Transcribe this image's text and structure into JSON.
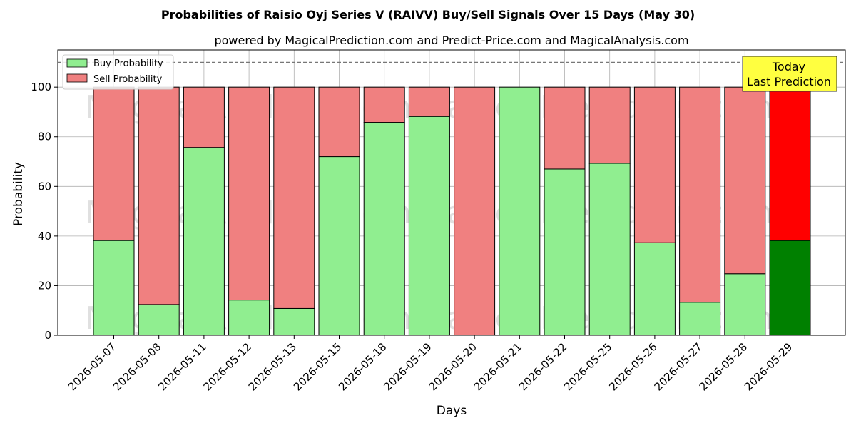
{
  "chart_data": {
    "type": "bar",
    "stacked": true,
    "title": "Probabilities of Raisio Oyj Series V (RAIVV) Buy/Sell Signals Over 15 Days (May 30)",
    "subtitle": "powered by MagicalPrediction.com and Predict-Price.com and MagicalAnalysis.com",
    "xlabel": "Days",
    "ylabel": "Probability",
    "ylim": [
      0,
      115
    ],
    "yticks": [
      0,
      20,
      40,
      60,
      80,
      100
    ],
    "reference_line": 110,
    "grid": true,
    "legend_position": "top-left",
    "categories": [
      "2026-05-07",
      "2026-05-08",
      "2026-05-11",
      "2026-05-12",
      "2026-05-13",
      "2026-05-15",
      "2026-05-18",
      "2026-05-19",
      "2026-05-20",
      "2026-05-21",
      "2026-05-22",
      "2026-05-25",
      "2026-05-26",
      "2026-05-27",
      "2026-05-28",
      "2026-05-29"
    ],
    "series": [
      {
        "name": "Buy Probability",
        "color": "#90ee90",
        "highlight_color": "#008000",
        "values": [
          38.2,
          12.4,
          75.7,
          14.2,
          10.8,
          72.0,
          85.8,
          88.2,
          0.0,
          100.0,
          67.0,
          69.3,
          37.3,
          13.3,
          24.8,
          38.2
        ]
      },
      {
        "name": "Sell Probability",
        "color": "#f08080",
        "highlight_color": "#ff0000",
        "values": [
          61.8,
          87.6,
          24.3,
          85.8,
          89.2,
          28.0,
          14.2,
          11.8,
          100.0,
          0.0,
          33.0,
          30.7,
          62.7,
          86.7,
          75.2,
          61.8
        ]
      }
    ],
    "highlight_index": 15,
    "annotation": {
      "line1": "Today",
      "line2": "Last Prediction",
      "color": "#ffff40"
    },
    "watermarks": [
      "MagicalAnalysis.com",
      "MagicalPrediction.com"
    ]
  }
}
